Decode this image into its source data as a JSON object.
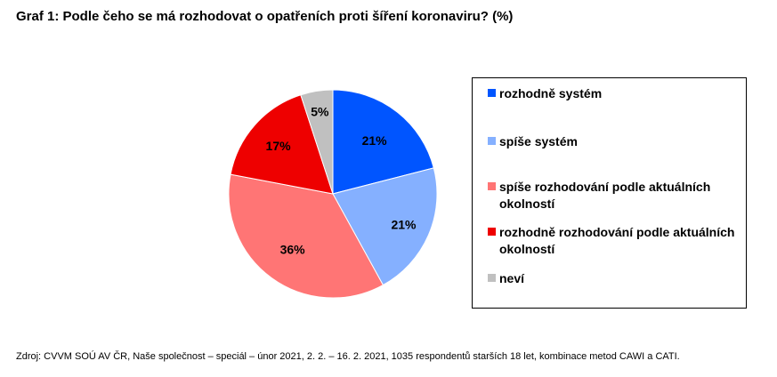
{
  "title": "Graf 1: Podle čeho se má rozhodovat o opatřeních proti šíření koronaviru? (%)",
  "source": "Zdroj: CVVM SOÚ AV ČR, Naše společnost – speciál – únor 2021,  2. 2. – 16. 2. 2021, 1035 respondentů starších 18 let, kombinace metod CAWI a CATI.",
  "chart_data": {
    "type": "pie",
    "title": "Graf 1: Podle čeho se má rozhodovat o opatřeních proti šíření koronaviru? (%)",
    "legend_position": "right",
    "categories": [
      "rozhodně systém",
      "spíše systém",
      "spíše rozhodování podle aktuálních okolností",
      "rozhodně rozhodování podle aktuálních okolností",
      "neví"
    ],
    "values": [
      21,
      21,
      36,
      17,
      5
    ],
    "labels": [
      "21%",
      "21%",
      "36%",
      "17%",
      "5%"
    ],
    "colors": [
      "#0055ff",
      "#85b0ff",
      "#ff7575",
      "#ee0000",
      "#c0c0c0"
    ]
  }
}
